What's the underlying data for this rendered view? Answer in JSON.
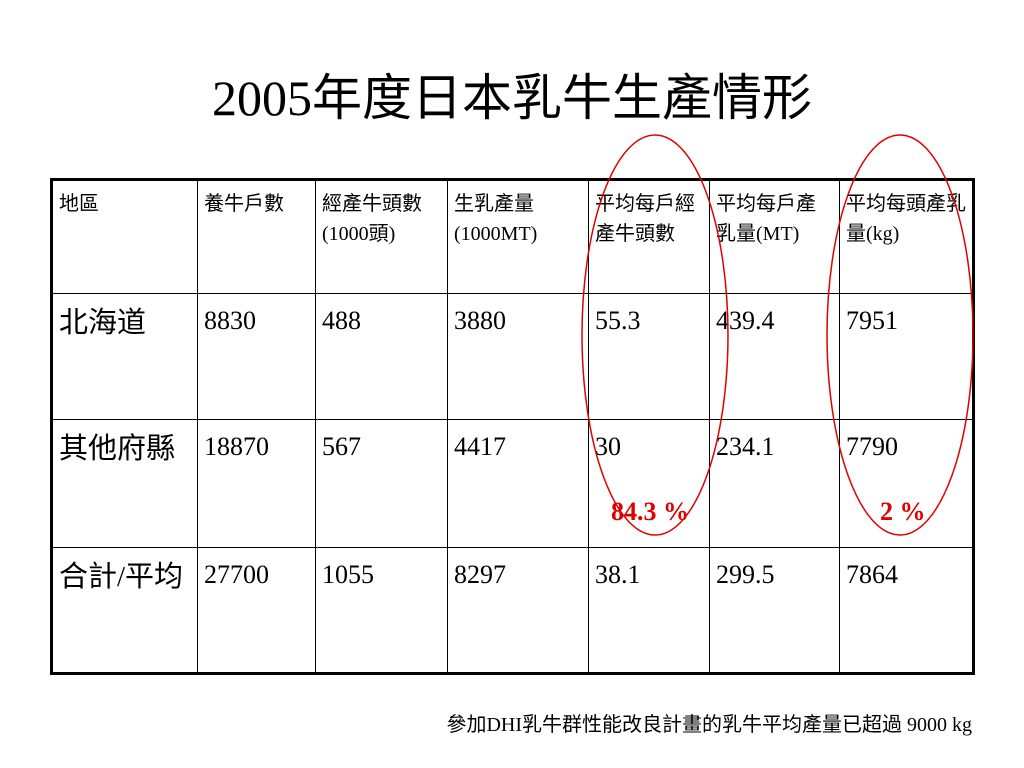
{
  "title": "2005年度日本乳牛生產情形",
  "table": {
    "headers": [
      "地區",
      "養牛戶數",
      "經產牛頭數(1000頭)",
      "生乳產量(1000MT)",
      "平均每戶經產牛頭數",
      "平均每戶產乳量(MT)",
      "平均每頭產乳量(kg)"
    ],
    "rows": [
      {
        "region": "北海道",
        "cells": [
          "8830",
          "488",
          "3880",
          "55.3",
          "439.4",
          "7951"
        ]
      },
      {
        "region": "其他府縣",
        "cells": [
          "18870",
          "567",
          "4417",
          "30",
          "234.1",
          "7790"
        ]
      },
      {
        "region": "合計/平均",
        "cells": [
          "27700",
          "1055",
          "8297",
          "38.1",
          "299.5",
          "7864"
        ]
      }
    ]
  },
  "annotations": {
    "pct_per_farm": "84.3 %",
    "pct_per_head": "2 %",
    "highlight_color": "#e00000"
  },
  "footnote": "參加DHI乳牛群性能改良計畫的乳牛平均產量已超過 9000 kg"
}
